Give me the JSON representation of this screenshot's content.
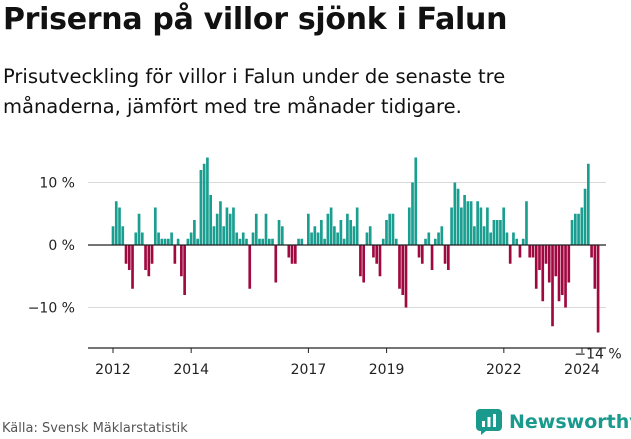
{
  "title": "Priserna på villor sjönk i Falun",
  "subtitle": "Prisutveckling för villor i Falun under de senaste tre månaderna, jämfört med tre månader tidigare.",
  "source": "Källa: Svensk Mäklarstatistik",
  "brand": "Newsworthy",
  "colors": {
    "positive": "#1a9e90",
    "negative": "#a0093f",
    "brand": "#1a9a8d"
  },
  "chart_data": {
    "type": "bar",
    "title": "Priserna på villor sjönk i Falun",
    "xlabel": "",
    "ylabel": "",
    "unit": "%",
    "x_start": 2012.0,
    "x_step": 0.0833,
    "ylim": [
      -16,
      15
    ],
    "y_ticks": [
      {
        "value": 10,
        "label": "10 %"
      },
      {
        "value": 0,
        "label": "0 %"
      },
      {
        "value": -10,
        "label": "−10 %"
      }
    ],
    "x_ticks": [
      {
        "value": 2012,
        "label": "2012"
      },
      {
        "value": 2014,
        "label": "2014"
      },
      {
        "value": 2017,
        "label": "2017"
      },
      {
        "value": 2019,
        "label": "2019"
      },
      {
        "value": 2022,
        "label": "2022"
      },
      {
        "value": 2024,
        "label": "2024"
      }
    ],
    "end_label": "−14 %",
    "values": [
      3,
      7,
      6,
      3,
      -3,
      -4,
      -7,
      2,
      5,
      2,
      -4,
      -5,
      -3,
      6,
      2,
      1,
      1,
      1,
      2,
      -3,
      1,
      -5,
      -8,
      1,
      2,
      4,
      1,
      12,
      13,
      14,
      8,
      3,
      5,
      7,
      3,
      6,
      5,
      6,
      2,
      1,
      2,
      1,
      -7,
      2,
      5,
      1,
      1,
      5,
      1,
      1,
      -6,
      4,
      3,
      0,
      -2,
      -3,
      -3,
      1,
      1,
      0,
      5,
      2,
      3,
      2,
      4,
      1,
      5,
      6,
      3,
      2,
      4,
      1,
      5,
      4,
      3,
      6,
      -5,
      -6,
      2,
      3,
      -2,
      -3,
      -5,
      1,
      4,
      5,
      5,
      1,
      -7,
      -8,
      -10,
      6,
      10,
      14,
      -2,
      -3,
      1,
      2,
      -4,
      1,
      2,
      3,
      -3,
      -4,
      6,
      10,
      9,
      6,
      8,
      7,
      7,
      3,
      7,
      6,
      3,
      6,
      2,
      4,
      4,
      4,
      6,
      2,
      -3,
      2,
      1,
      -2,
      1,
      7,
      -2,
      -2,
      -7,
      -4,
      -9,
      -3,
      -6,
      -13,
      -5,
      -9,
      -8,
      -10,
      -6,
      4,
      5,
      5,
      6,
      9,
      13,
      -2,
      -7,
      -14
    ]
  }
}
